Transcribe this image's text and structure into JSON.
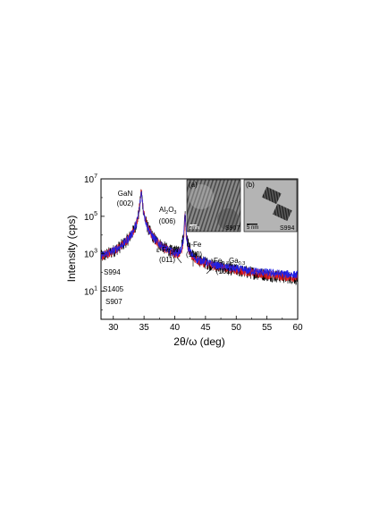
{
  "chart_data": {
    "type": "line",
    "title": "",
    "xlabel": "2θ/ω (deg)",
    "ylabel": "Intensity (cps)",
    "xlim": [
      28,
      60
    ],
    "ylim_log10": [
      -0.5,
      7
    ],
    "y_scale": "log",
    "x_ticks": [
      "30",
      "35",
      "40",
      "45",
      "50",
      "55",
      "60"
    ],
    "y_ticks": [
      {
        "base": "10",
        "exp": "1"
      },
      {
        "base": "10",
        "exp": "3"
      },
      {
        "base": "10",
        "exp": "5"
      },
      {
        "base": "10",
        "exp": "7"
      }
    ],
    "colors": {
      "S994": "#1f1fe6",
      "S1405": "#e31b1b",
      "S907": "#000000"
    },
    "series": [
      {
        "name": "S994",
        "baseline_log10": 1.45,
        "noise": 0.22,
        "peaks": [
          [
            34.56,
            6.3,
            0.12
          ],
          [
            41.68,
            5.1,
            0.06
          ],
          [
            42.7,
            2.0,
            0.25
          ],
          [
            44.6,
            1.7,
            0.35
          ],
          [
            44.9,
            1.5,
            0.3
          ]
        ]
      },
      {
        "name": "S1405",
        "baseline_log10": 0.85,
        "noise": 0.25,
        "peaks": [
          [
            34.56,
            6.3,
            0.12
          ],
          [
            41.68,
            5.0,
            0.06
          ]
        ]
      },
      {
        "name": "S907",
        "baseline_log10": 0.25,
        "noise": 0.35,
        "peaks": [
          [
            34.56,
            6.3,
            0.12
          ],
          [
            41.68,
            5.3,
            0.06
          ]
        ]
      }
    ],
    "series_labels": [
      {
        "name": "S994",
        "text": "S994"
      },
      {
        "name": "S1405",
        "text": "S1405"
      },
      {
        "name": "S907",
        "text": "S907"
      }
    ],
    "annotations": {
      "gan": {
        "line1": "GaN",
        "line2": "(002)"
      },
      "al2o3": {
        "main": "Al",
        "sub1": "2",
        "mid": "O",
        "sub2": "3",
        "line2": "(006)"
      },
      "fe2n": {
        "main": "ε-Fe",
        "sub": "2",
        "tail": "N",
        "line2": "(011)"
      },
      "afe": {
        "line1": "α-Fe",
        "line2": "(110)"
      },
      "fega": {
        "main": "Fe",
        "sub1": "0.7",
        "mid": "Ga",
        "sub2": "0.3",
        "line2": "(101)"
      }
    },
    "insets": [
      {
        "panel": "(a)",
        "sample": "S907",
        "scale": "2 nm"
      },
      {
        "panel": "(b)",
        "sample": "S994",
        "scale": "5 nm"
      }
    ]
  }
}
